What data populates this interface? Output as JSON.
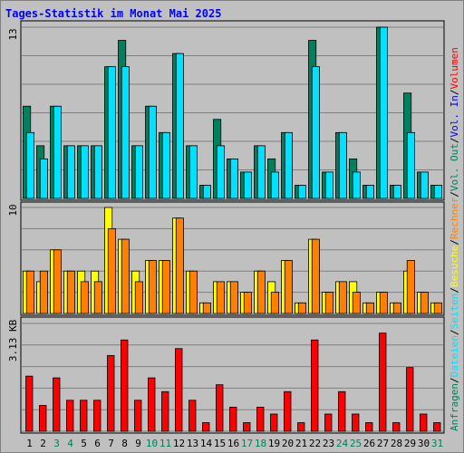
{
  "title": "Tages-Statistik im Monat Mai 2025",
  "colors": {
    "background": "#c0c0c0",
    "title": "#0000ff",
    "gridline": "#808080",
    "anfragen": "#00805c",
    "dateien": "#00e0ff",
    "seiten": "#00e0ff",
    "besuche": "#ffff00",
    "rechner": "#ff8000",
    "volumen": "#ff0000",
    "volIn": "#0000ff",
    "volOut": "#00805c",
    "weekend_label": "#00805c",
    "weekday_label": "#000000",
    "separator": "#000000"
  },
  "chart_data": [
    {
      "type": "bar",
      "panel": "hits",
      "y_max_label": "13",
      "ylim": [
        0,
        13
      ],
      "x": [
        "1",
        "2",
        "3",
        "4",
        "5",
        "6",
        "7",
        "8",
        "9",
        "10",
        "11",
        "12",
        "13",
        "14",
        "15",
        "16",
        "17",
        "18",
        "19",
        "20",
        "21",
        "22",
        "23",
        "24",
        "25",
        "26",
        "27",
        "28",
        "29",
        "30",
        "31"
      ],
      "weekend_days": [
        "3",
        "4",
        "10",
        "11",
        "17",
        "18",
        "24",
        "25",
        "31"
      ],
      "series": [
        {
          "name": "Anfragen",
          "values": [
            7,
            4,
            7,
            4,
            4,
            4,
            10,
            12,
            4,
            7,
            5,
            11,
            4,
            1,
            6,
            3,
            2,
            4,
            3,
            5,
            1,
            12,
            2,
            5,
            3,
            1,
            13,
            1,
            8,
            2,
            1
          ]
        },
        {
          "name": "Dateien",
          "values": [
            5,
            3,
            7,
            4,
            4,
            4,
            10,
            10,
            4,
            7,
            5,
            11,
            4,
            1,
            4,
            3,
            2,
            4,
            2,
            5,
            1,
            10,
            2,
            5,
            2,
            1,
            13,
            1,
            5,
            2,
            1
          ]
        },
        {
          "name": "Seiten",
          "values": [
            0,
            0,
            0,
            0,
            0,
            0,
            0,
            0,
            0,
            0,
            0,
            0,
            0,
            0,
            0,
            0,
            0,
            0,
            0,
            0,
            0,
            0,
            0,
            0,
            0,
            0,
            0,
            0,
            0,
            0,
            0
          ]
        }
      ]
    },
    {
      "type": "bar",
      "panel": "visits",
      "y_max_label": "10",
      "ylim": [
        0,
        10
      ],
      "series": [
        {
          "name": "Besuche",
          "values": [
            4,
            3,
            6,
            4,
            4,
            4,
            10,
            7,
            4,
            5,
            5,
            9,
            4,
            1,
            3,
            3,
            2,
            4,
            3,
            5,
            1,
            7,
            2,
            3,
            3,
            1,
            2,
            1,
            4,
            2,
            1
          ]
        },
        {
          "name": "Rechner",
          "values": [
            4,
            4,
            6,
            4,
            3,
            3,
            8,
            7,
            3,
            5,
            5,
            9,
            4,
            1,
            3,
            3,
            2,
            4,
            2,
            5,
            1,
            7,
            2,
            3,
            2,
            1,
            2,
            1,
            5,
            2,
            1
          ]
        }
      ]
    },
    {
      "type": "bar",
      "panel": "volume",
      "y_max_label": "3.13 KB",
      "ylim": [
        0,
        3.13
      ],
      "series": [
        {
          "name": "Volumen",
          "values": [
            1.6,
            0.75,
            1.55,
            0.9,
            0.9,
            0.9,
            2.2,
            2.65,
            0.9,
            1.55,
            1.15,
            2.4,
            0.9,
            0.25,
            1.35,
            0.7,
            0.25,
            0.7,
            0.5,
            1.15,
            0.25,
            2.65,
            0.5,
            1.15,
            0.5,
            0.25,
            2.85,
            0.25,
            1.85,
            0.5,
            0.25
          ]
        }
      ]
    }
  ],
  "right_legend": [
    {
      "text": "Anfragen",
      "color_key": "anfragen"
    },
    {
      "text": "/",
      "color_key": "separator"
    },
    {
      "text": "Dateien",
      "color_key": "dateien"
    },
    {
      "text": "/",
      "color_key": "separator"
    },
    {
      "text": "Seiten",
      "color_key": "seiten"
    },
    {
      "text": "/",
      "color_key": "separator"
    },
    {
      "text": "Besuche",
      "color_key": "besuche"
    },
    {
      "text": "/",
      "color_key": "separator"
    },
    {
      "text": "Rechner",
      "color_key": "rechner"
    },
    {
      "text": "/",
      "color_key": "separator"
    },
    {
      "text": "Vol. Out",
      "color_key": "volOut"
    },
    {
      "text": "/",
      "color_key": "separator"
    },
    {
      "text": "Vol. In",
      "color_key": "volIn"
    },
    {
      "text": "/",
      "color_key": "separator"
    },
    {
      "text": "Volumen",
      "color_key": "volumen"
    }
  ]
}
